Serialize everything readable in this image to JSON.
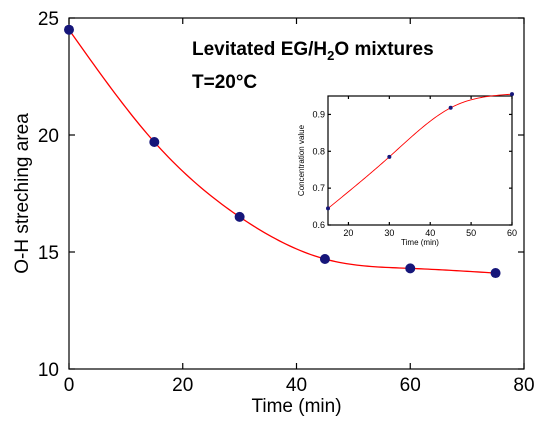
{
  "chart_data": [
    {
      "type": "scatter",
      "title": "",
      "xlabel": "Time (min)",
      "ylabel": "O-H streching area",
      "xlim": [
        0,
        80
      ],
      "ylim": [
        10,
        25
      ],
      "xticks": [
        "0",
        "20",
        "40",
        "60",
        "80"
      ],
      "yticks": [
        "10",
        "15",
        "20",
        "25"
      ],
      "annotations": {
        "line1_main": "Levitated EG/H",
        "line1_sub": "2",
        "line1_tail": "O mixtures",
        "line2": "T=20°C"
      },
      "series": [
        {
          "x": [
            0,
            15,
            30,
            45,
            60,
            75
          ],
          "y": [
            24.5,
            19.7,
            16.5,
            14.7,
            14.3,
            14.1
          ],
          "marker_color": "#16167a",
          "fit_line_color": "#ff0000"
        }
      ],
      "grid": false
    },
    {
      "type": "scatter",
      "title": "",
      "xlabel": "Time (min)",
      "ylabel": "Concentration value",
      "xlim": [
        15,
        60
      ],
      "ylim": [
        0.6,
        0.95
      ],
      "xticks": [
        "20",
        "30",
        "40",
        "50",
        "60"
      ],
      "yticks": [
        "0.6",
        "0.7",
        "0.8",
        "0.9"
      ],
      "series": [
        {
          "x": [
            15,
            30,
            45,
            60
          ],
          "y": [
            0.645,
            0.785,
            0.918,
            0.955
          ],
          "marker_color": "#16167a",
          "fit_line_color": "#ff0000"
        }
      ],
      "grid": false
    }
  ]
}
